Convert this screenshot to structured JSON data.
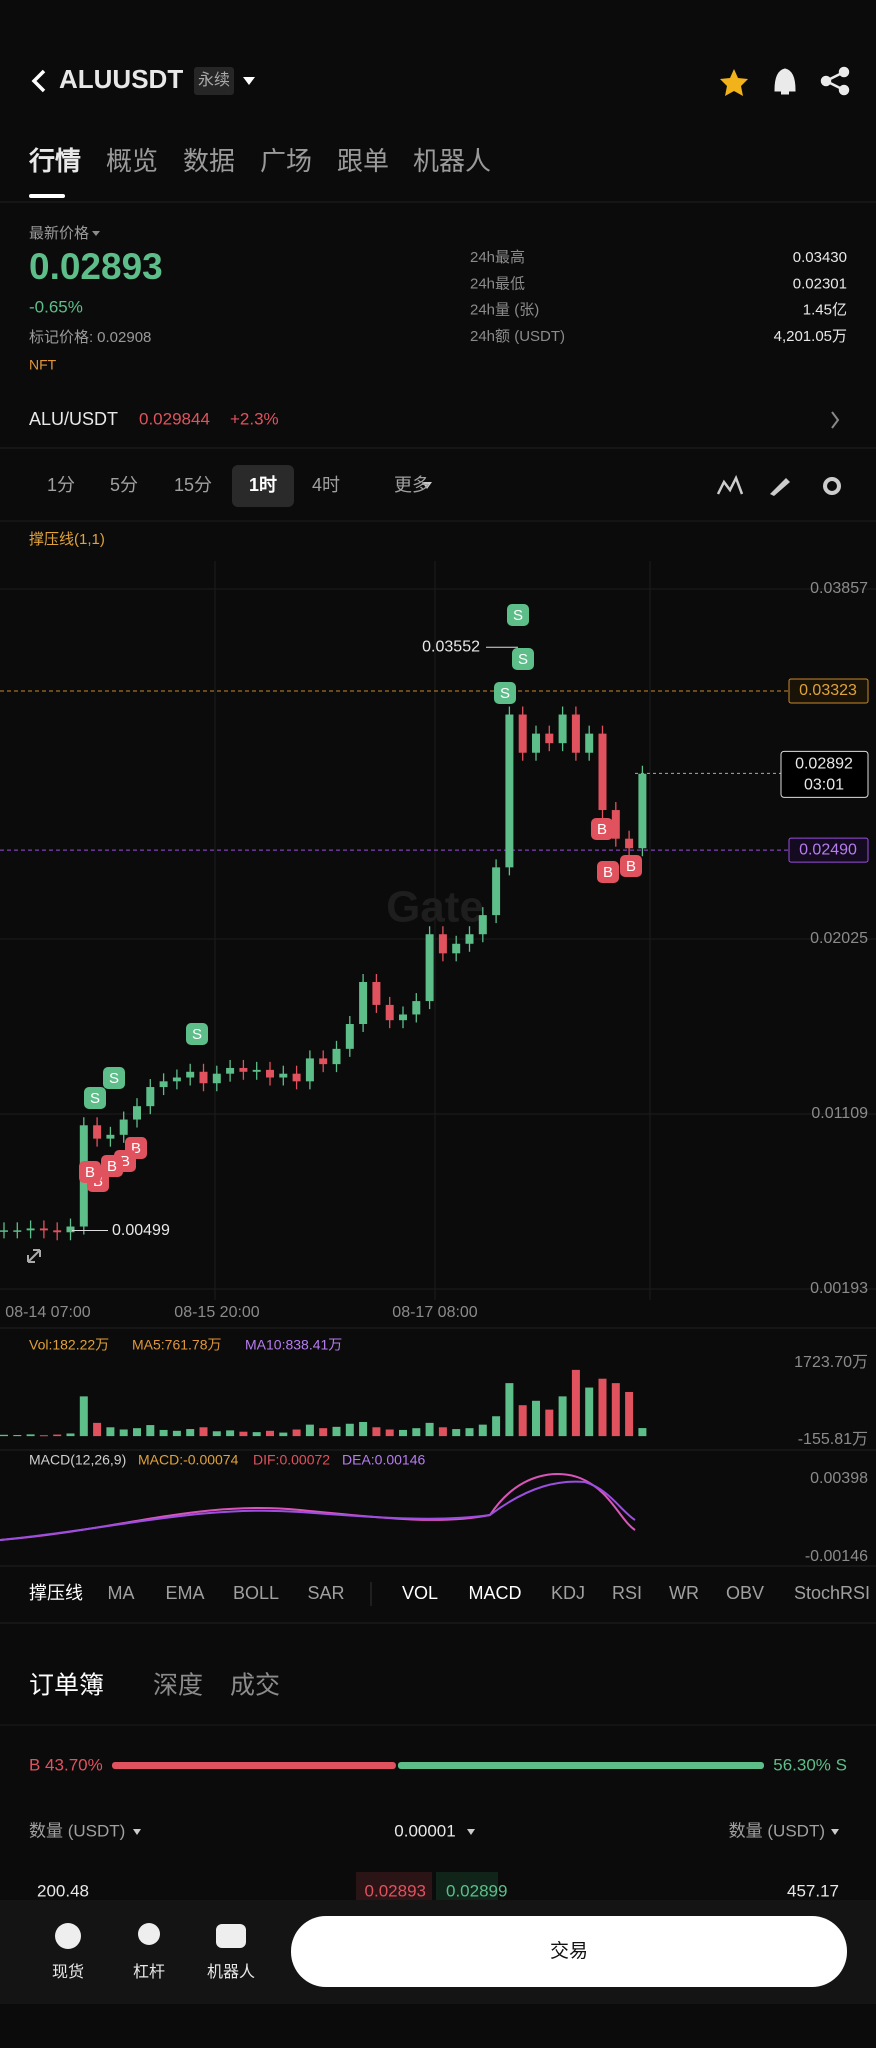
{
  "header": {
    "symbol": "ALUUSDT",
    "tag": "永续"
  },
  "tabs": [
    "行情",
    "概览",
    "数据",
    "广场",
    "跟单",
    "机器人"
  ],
  "price": {
    "label": "最新价格",
    "last": "0.02893",
    "change": "-0.65%",
    "mark_label": "标记价格:",
    "mark": "0.02908",
    "tag": "NFT"
  },
  "stats": [
    {
      "label": "24h最高",
      "value": "0.03430"
    },
    {
      "label": "24h最低",
      "value": "0.02301"
    },
    {
      "label": "24h量 (张)",
      "value": "1.45亿"
    },
    {
      "label": "24h额 (USDT)",
      "value": "4,201.05万"
    }
  ],
  "spot": {
    "pair": "ALU/USDT",
    "price": "0.029844",
    "change": "+2.3%"
  },
  "intervals": [
    "1分",
    "5分",
    "15分",
    "1时",
    "4时",
    "更多"
  ],
  "selected_interval": "1时",
  "indicator_label": "撑压线(1,1)",
  "chart_data": {
    "type": "candlestick",
    "watermark": "Gate",
    "buy_label": "B",
    "sell_label": "S",
    "closes": [
      0.005,
      0.005,
      0.0051,
      0.005,
      0.0049,
      0.0052,
      0.0105,
      0.0098,
      0.01,
      0.0108,
      0.0115,
      0.0125,
      0.0128,
      0.013,
      0.0133,
      0.0127,
      0.0132,
      0.0135,
      0.0133,
      0.0134,
      0.013,
      0.0132,
      0.0128,
      0.014,
      0.0137,
      0.0145,
      0.0158,
      0.018,
      0.0168,
      0.016,
      0.0163,
      0.017,
      0.0205,
      0.0195,
      0.02,
      0.0205,
      0.0215,
      0.024,
      0.032,
      0.03,
      0.031,
      0.0305,
      0.032,
      0.03,
      0.031,
      0.027,
      0.0255,
      0.025,
      0.0289
    ],
    "ylim": [
      0.00193,
      0.03857
    ],
    "yticks": [
      0.03857,
      0.02025,
      0.01109,
      0.00193
    ],
    "xlabels": [
      "08-14 07:00",
      "08-15 20:00",
      "08-17 08:00"
    ],
    "resistance": 0.03323,
    "support": {
      "value": 0.0249,
      "label": "0.02490"
    },
    "current": {
      "value": 0.02892,
      "countdown": "03:01"
    },
    "high": 0.03552,
    "low": 0.00499,
    "volume": {
      "labels": [
        "Vol:182.22万",
        "MA5:761.78万",
        "MA10:838.41万"
      ],
      "values": [
        30,
        25,
        40,
        20,
        35,
        60,
        900,
        300,
        200,
        150,
        180,
        250,
        140,
        120,
        160,
        200,
        110,
        130,
        100,
        90,
        120,
        80,
        150,
        260,
        180,
        210,
        280,
        320,
        200,
        150,
        140,
        180,
        300,
        200,
        160,
        180,
        260,
        450,
        1200,
        700,
        800,
        600,
        900,
        1500,
        1100,
        1300,
        1200,
        1000,
        182.22
      ],
      "ylim": [
        -155.81,
        1723.7
      ],
      "yticks": [
        {
          "value": 1723.7,
          "label": "1723.70万"
        },
        {
          "value": -155.81,
          "label": "-155.81万"
        }
      ]
    },
    "macd": {
      "labels": [
        "MACD(12,26,9)",
        "MACD:-0.00074",
        "DIF:0.00072",
        "DEA:0.00146"
      ],
      "yticks": [
        0.00398,
        -0.00146
      ]
    }
  },
  "indicators": [
    "撑压线",
    "MA",
    "EMA",
    "BOLL",
    "SAR",
    "VOL",
    "MACD",
    "KDJ",
    "RSI",
    "WR",
    "OBV",
    "StochRSI"
  ],
  "orderbook": {
    "tabs": [
      "订单簿",
      "深度",
      "成交"
    ],
    "buy_label": "B 43.70%",
    "buy": 43.7,
    "sell_label": "56.30% S",
    "sell": 56.3,
    "columns": [
      "数量 (USDT)",
      "0.00001",
      "数量 (USDT)"
    ],
    "row": [
      "200.48",
      "0.02893",
      "0.02899",
      "457.17"
    ]
  },
  "nav": [
    "现货",
    "杠杆",
    "机器人"
  ],
  "trade_button": "交易"
}
